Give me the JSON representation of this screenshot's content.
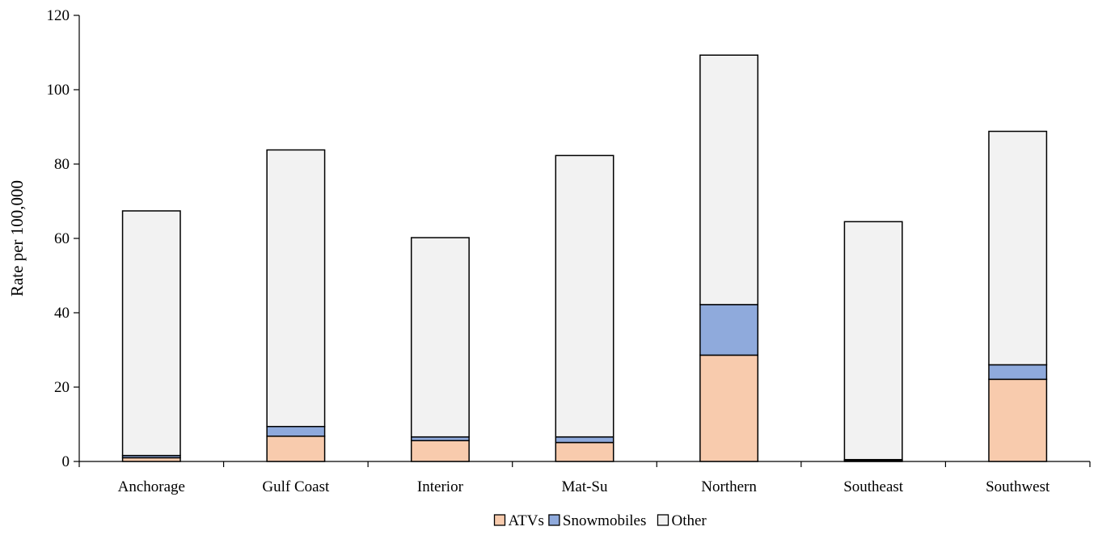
{
  "chart_data": {
    "type": "bar",
    "stacked": true,
    "title": "",
    "xlabel": "",
    "ylabel": "Rate per 100,000",
    "ylim": [
      0,
      120
    ],
    "yticks": [
      0,
      20,
      40,
      60,
      80,
      100,
      120
    ],
    "grid": false,
    "legend_position": "bottom",
    "categories": [
      "Anchorage",
      "Gulf Coast",
      "Interior",
      "Mat-Su",
      "Northern",
      "Southeast",
      "Southwest"
    ],
    "series": [
      {
        "name": "ATVs",
        "color": "#f8cbad",
        "values": [
          1.0,
          6.8,
          5.6,
          5.1,
          28.6,
          0.3,
          22.1
        ]
      },
      {
        "name": "Snowmobiles",
        "color": "#8faadc",
        "values": [
          0.6,
          2.6,
          1.0,
          1.5,
          13.6,
          0.2,
          3.9
        ]
      },
      {
        "name": "Other",
        "color": "#f2f2f2",
        "values": [
          65.8,
          74.4,
          53.6,
          75.7,
          67.1,
          64.0,
          62.8
        ]
      }
    ]
  }
}
